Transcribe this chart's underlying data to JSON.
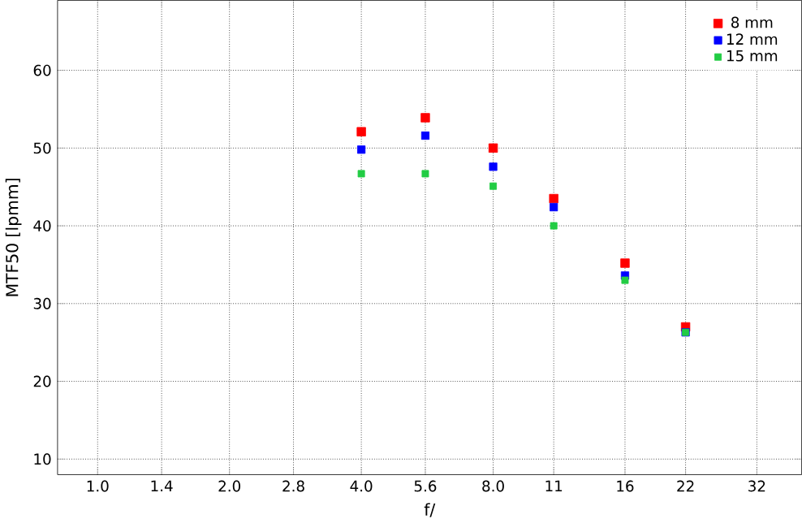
{
  "chart_data": {
    "type": "scatter",
    "xlabel": "f/",
    "ylabel": "MTF50 [lpmm]",
    "log": "x",
    "x": [
      4,
      5.6,
      8,
      11,
      16,
      22
    ],
    "series": [
      {
        "name": "8 mm",
        "color": "#ff0000",
        "values": [
          52.1,
          53.9,
          50,
          43.5,
          35.2,
          27
        ]
      },
      {
        "name": "12 mm",
        "color": "#0000ff",
        "values": [
          49.8,
          51.6,
          47.6,
          42.4,
          33.6,
          26.3
        ]
      },
      {
        "name": "15 mm",
        "color": "#22cc44",
        "values": [
          46.7,
          46.7,
          45.1,
          40,
          33,
          26.3
        ]
      }
    ],
    "xlim": [
      0.81,
      40.5
    ],
    "ylim": [
      8,
      69
    ],
    "xticks": [
      {
        "value": 1,
        "label": "1.0"
      },
      1.4,
      {
        "value": 2,
        "label": "2.0"
      },
      2.8,
      {
        "value": 4,
        "label": "4.0"
      },
      5.6,
      {
        "value": 8,
        "label": "8.0"
      },
      11,
      16,
      22,
      32
    ],
    "yticks": [
      10,
      20,
      30,
      40,
      50,
      60
    ],
    "grid": true,
    "legend": "top right",
    "marker": "square"
  }
}
